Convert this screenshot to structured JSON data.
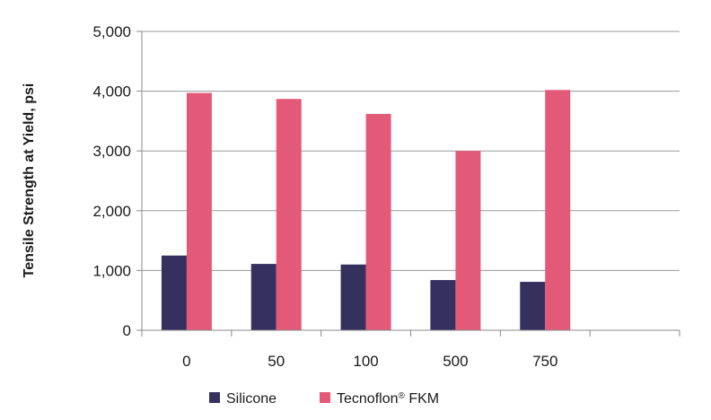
{
  "chart_data": {
    "type": "bar",
    "categories": [
      "0",
      "50",
      "100",
      "500",
      "750",
      ""
    ],
    "series": [
      {
        "name": "Silicone",
        "values": [
          1250,
          1110,
          1100,
          840,
          810,
          null
        ],
        "color": "#36305e"
      },
      {
        "name": "Tecnoflon® FKM",
        "values": [
          3970,
          3870,
          3620,
          3000,
          4020,
          null
        ],
        "color": "#e35a78"
      }
    ],
    "title": "",
    "xlabel": "",
    "ylabel": "Tensile Strength at Yield, psi",
    "ylim": [
      0,
      5000
    ],
    "yticks": [
      0,
      1000,
      2000,
      3000,
      4000,
      5000
    ],
    "ytick_labels": [
      "0",
      "1,000",
      "2,000",
      "3,000",
      "4,000",
      "5,000"
    ],
    "grid": true,
    "legend_position": "bottom"
  },
  "legend": {
    "silicone_label": "Silicone",
    "fkm_label_main": "Tecnoflon",
    "fkm_label_sup": "®",
    "fkm_label_tail": " FKM"
  }
}
